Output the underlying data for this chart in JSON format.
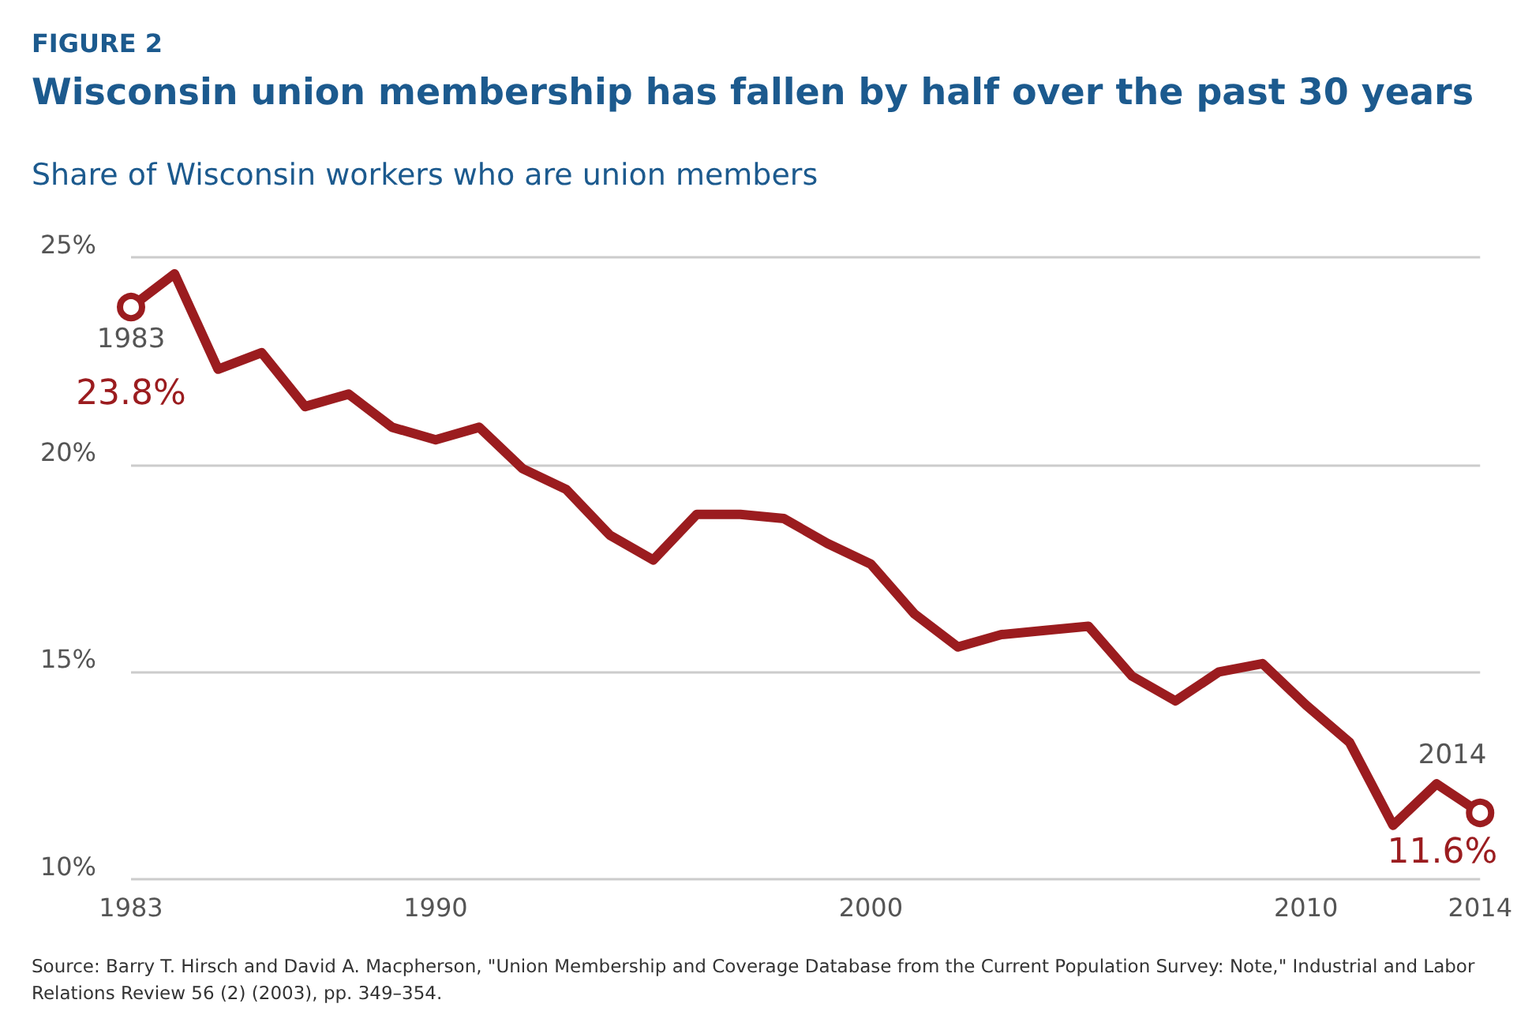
{
  "chart_data": {
    "type": "line",
    "title": "Wisconsin union membership has fallen by half over the past 30 years",
    "subtitle": "Share of Wisconsin workers who are union members",
    "x": [
      1983,
      1984,
      1985,
      1986,
      1987,
      1988,
      1989,
      1990,
      1991,
      1992,
      1993,
      1994,
      1995,
      1996,
      1997,
      1998,
      1999,
      2000,
      2001,
      2002,
      2003,
      2004,
      2005,
      2006,
      2007,
      2008,
      2009,
      2010,
      2011,
      2012,
      2013,
      2014
    ],
    "series": [
      {
        "color": "#9b1c1f",
        "values": [
          23.8,
          24.6,
          22.3,
          22.7,
          21.4,
          21.7,
          20.9,
          20.6,
          20.9,
          19.9,
          19.4,
          18.3,
          17.7,
          18.8,
          18.8,
          18.7,
          18.1,
          17.6,
          16.4,
          15.6,
          15.9,
          16.0,
          16.1,
          14.9,
          14.3,
          15.0,
          15.2,
          14.2,
          13.3,
          11.3,
          12.3,
          11.6
        ],
        "value_labels": [
          "23.8%",
          null,
          null,
          null,
          null,
          null,
          null,
          null,
          null,
          null,
          null,
          null,
          null,
          null,
          null,
          null,
          null,
          null,
          null,
          null,
          null,
          null,
          null,
          null,
          null,
          null,
          null,
          null,
          null,
          null,
          null,
          "11.6%"
        ]
      }
    ],
    "xlim": [
      1983,
      2014
    ],
    "xticks": [
      1983,
      1990,
      2000,
      2010,
      2014
    ],
    "ylim": [
      10,
      25
    ],
    "yticks": [
      {
        "value": 10,
        "label": "10%"
      },
      {
        "value": 15,
        "label": "15%"
      },
      {
        "value": 20,
        "label": "20%"
      },
      {
        "value": 25,
        "label": "25%"
      }
    ],
    "grid": "y",
    "marker": "none",
    "line_style": "solid",
    "annotations": [
      "FIGURE 2",
      {
        "text": "1983",
        "x": 1983,
        "y": 23.8
      },
      {
        "text": "2014",
        "x": 2014,
        "y": 11.6
      },
      "Source: Barry T. Hirsch and David A. Macpherson, \"Union Membership and Coverage Database from the Current Population Survey: Note,\" Industrial and Labor Relations Review 56 (2) (2003), pp. 349–354."
    ]
  }
}
